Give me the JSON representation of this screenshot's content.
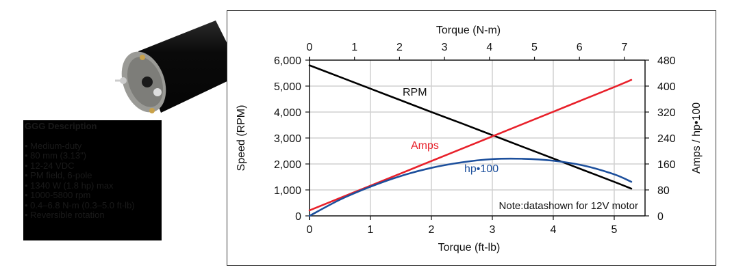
{
  "product": {
    "image": "dc-motor-photo",
    "description_title": "GGG Description",
    "features": [
      "Medium-duty",
      "80 mm (3.13\")",
      "12-24 VDC",
      "PM field, 6-pole",
      "1340 W (1.8 hp) max",
      "1000-5800 rpm",
      "0.4–6.8 N-m (0.3–5.0 ft-lb)",
      "Reversible rotation"
    ]
  },
  "chart": {
    "top_axis_title": "Torque (N-m)",
    "bottom_axis_title": "Torque (ft-lb)",
    "left_axis_title": "Speed (RPM)",
    "right_axis_title": "Amps / hp•100",
    "note": "Note:datashown for 12V motor",
    "labels": {
      "rpm": "RPM",
      "amps": "Amps",
      "hp": "hp•100"
    },
    "colors": {
      "rpm": "#000000",
      "amps": "#e8202a",
      "hp": "#1c4f9c",
      "grid": "#d0d0d0"
    }
  },
  "chart_data": {
    "type": "line",
    "title": "",
    "xlabel": "Torque (ft-lb)",
    "x2label": "Torque (N-m)",
    "ylabel": "Speed (RPM)",
    "y2label": "Amps / hp•100",
    "xlim": [
      0,
      5.5
    ],
    "x_ticks": [
      0,
      1,
      2,
      3,
      4,
      5
    ],
    "x2_ticks": [
      0,
      1,
      2,
      3,
      4,
      5,
      6,
      7
    ],
    "ylim": [
      0,
      6000
    ],
    "y_ticks": [
      "0",
      "1,000",
      "2,000",
      "3,000",
      "4,000",
      "5,000",
      "6,000"
    ],
    "y2lim": [
      0,
      480
    ],
    "y2_ticks": [
      "0",
      "80",
      "160",
      "240",
      "320",
      "400",
      "480"
    ],
    "grid": true,
    "annotation": "Note:datashown for 12V motor",
    "x": [
      0,
      0.5,
      1,
      1.5,
      2,
      2.5,
      3,
      3.5,
      4,
      4.5,
      5,
      5.28
    ],
    "series": [
      {
        "name": "RPM",
        "axis": "left",
        "values": [
          5800,
          5350,
          4900,
          4450,
          4000,
          3560,
          3110,
          2660,
          2210,
          1760,
          1310,
          1050
        ]
      },
      {
        "name": "Amps",
        "axis": "right",
        "values": [
          17,
          55,
          93,
          131,
          169,
          207,
          245,
          283,
          321,
          359,
          397,
          419
        ]
      },
      {
        "name": "hp•100",
        "axis": "right",
        "values": [
          0,
          50,
          90,
          123,
          148,
          165,
          175,
          176,
          170,
          155,
          128,
          105
        ]
      }
    ]
  }
}
